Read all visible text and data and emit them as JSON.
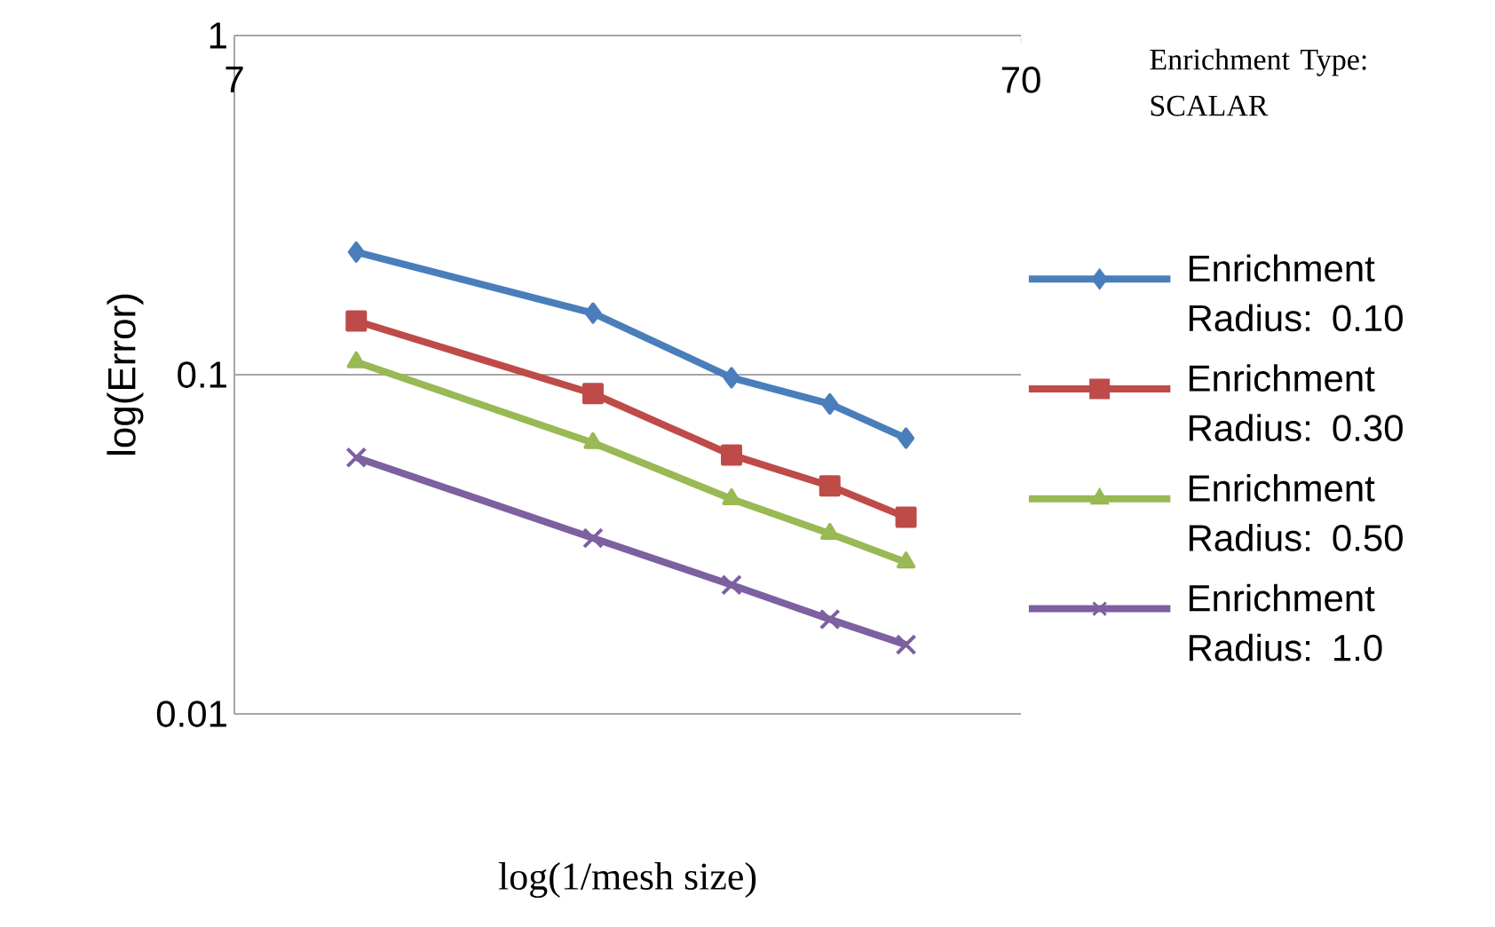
{
  "chart_data": {
    "type": "line",
    "legend_title": "Enrichment Type: SCALAR",
    "xlabel": "log(1/mesh size)",
    "ylabel": "log(Error)",
    "log": "xy",
    "grid": "y",
    "legend": "right",
    "xlim": [
      7,
      70
    ],
    "xticks": [
      7,
      70
    ],
    "ylim": [
      0.01,
      1
    ],
    "yticks": [
      0.01,
      0.1,
      1
    ],
    "x": [
      10,
      20,
      30,
      40,
      50
    ],
    "series": [
      {
        "name": "Enrichment Radius: 0.10",
        "color": "#4a7ebb",
        "marker": "diamond",
        "values": [
          0.23,
          0.152,
          0.098,
          0.082,
          0.065
        ]
      },
      {
        "name": "Enrichment Radius: 0.30",
        "color": "#be4b48",
        "marker": "square",
        "values": [
          0.144,
          0.088,
          0.058,
          0.047,
          0.038
        ]
      },
      {
        "name": "Enrichment Radius: 0.50",
        "color": "#98b954",
        "marker": "triangle",
        "values": [
          0.109,
          0.063,
          0.043,
          0.034,
          0.028
        ]
      },
      {
        "name": "Enrichment Radius: 1.0",
        "color": "#7d60a0",
        "marker": "cross",
        "values": [
          0.057,
          0.033,
          0.024,
          0.019,
          0.016
        ]
      }
    ]
  }
}
